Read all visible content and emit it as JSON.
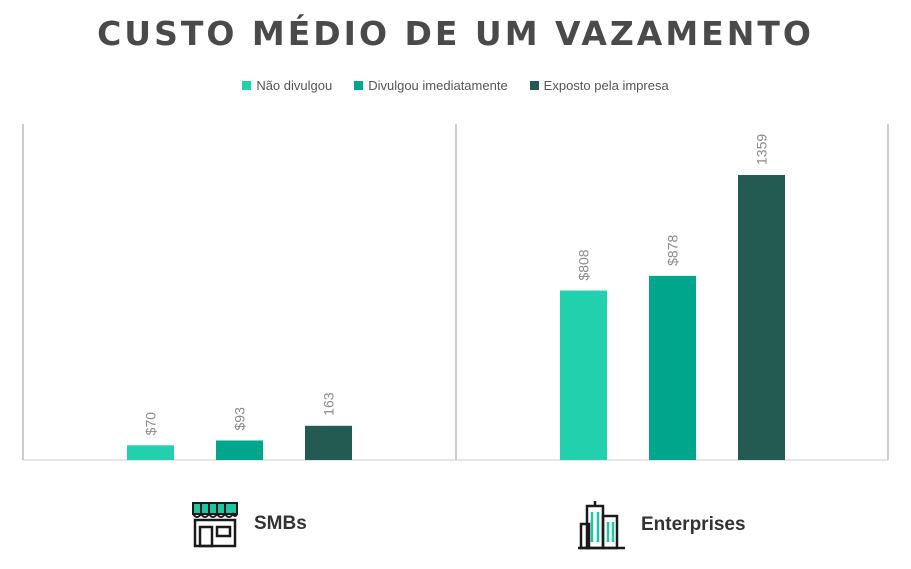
{
  "title": "CUSTO MÉDIO DE UM VAZAMENTO",
  "colors": {
    "series": [
      "#22d0ae",
      "#00a68c",
      "#235a52"
    ],
    "axis": "#cccccc",
    "value_label": "#8a8a8a",
    "icon": "#1a1a1a",
    "icon_accent": "#1fc6a4"
  },
  "icons": {
    "smb": "storefront-icon",
    "enterprise": "office-buildings-icon"
  },
  "chart_data": {
    "type": "bar",
    "title": "CUSTO MÉDIO DE UM VAZAMENTO",
    "legend_position": "top",
    "grid": false,
    "series_names": [
      "Não divulgou",
      "Divulgou imediatamente",
      "Exposto pela impresa"
    ],
    "ylim": [
      0,
      1500
    ],
    "panels": [
      {
        "name": "SMBs",
        "values": [
          70,
          93,
          163
        ],
        "labels": [
          "$70",
          "$93",
          "163"
        ]
      },
      {
        "name": "Enterprises",
        "values": [
          808,
          878,
          1359
        ],
        "labels": [
          "$808",
          "$878",
          "1359"
        ]
      }
    ]
  }
}
